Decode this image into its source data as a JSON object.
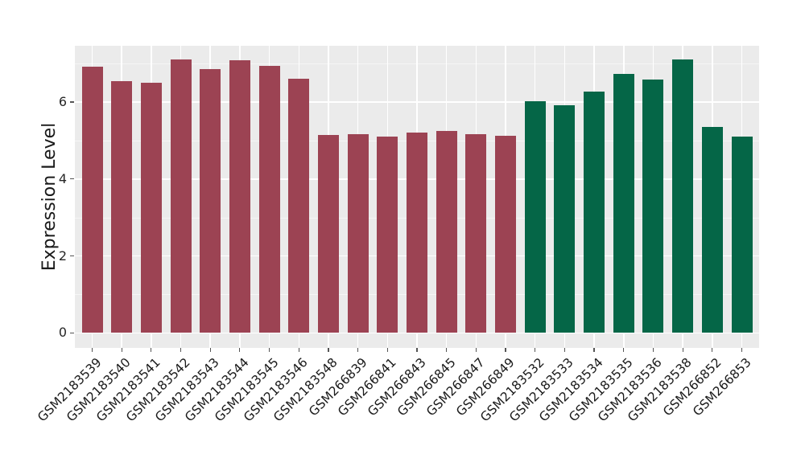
{
  "chart_data": {
    "type": "bar",
    "title": "",
    "xlabel": "",
    "ylabel": "Expression Level",
    "categories": [
      "GSM2183539",
      "GSM2183540",
      "GSM2183541",
      "GSM2183542",
      "GSM2183543",
      "GSM2183544",
      "GSM2183545",
      "GSM2183546",
      "GSM2183548",
      "GSM266839",
      "GSM266841",
      "GSM266843",
      "GSM266845",
      "GSM266847",
      "GSM266849",
      "GSM2183532",
      "GSM2183533",
      "GSM2183534",
      "GSM2183535",
      "GSM2183536",
      "GSM2183538",
      "GSM266852",
      "GSM266853"
    ],
    "values": [
      6.91,
      6.55,
      6.49,
      7.11,
      6.85,
      7.09,
      6.94,
      6.6,
      5.14,
      5.16,
      5.1,
      5.2,
      5.24,
      5.17,
      5.13,
      6.02,
      5.92,
      6.28,
      6.73,
      6.59,
      7.1,
      5.35,
      5.1
    ],
    "groups": [
      "group1",
      "group1",
      "group1",
      "group1",
      "group1",
      "group1",
      "group1",
      "group1",
      "group1",
      "group1",
      "group1",
      "group1",
      "group1",
      "group1",
      "group1",
      "group2",
      "group2",
      "group2",
      "group2",
      "group2",
      "group2",
      "group2",
      "group2"
    ],
    "group_colors": {
      "group1": "#9C4353",
      "group2": "#056647"
    },
    "ylim": [
      -0.39,
      7.46
    ],
    "yticks_major": [
      0,
      2,
      4,
      6
    ],
    "ytick_labels": [
      "0",
      "2",
      "4",
      "6"
    ],
    "yticks_minor": [
      1,
      3,
      5,
      7
    ],
    "grid": "on",
    "legend_position": "none",
    "panel_background": "#EBEBEB",
    "grid_color": "#FFFFFF",
    "x_tick_rotation_deg": 45
  }
}
